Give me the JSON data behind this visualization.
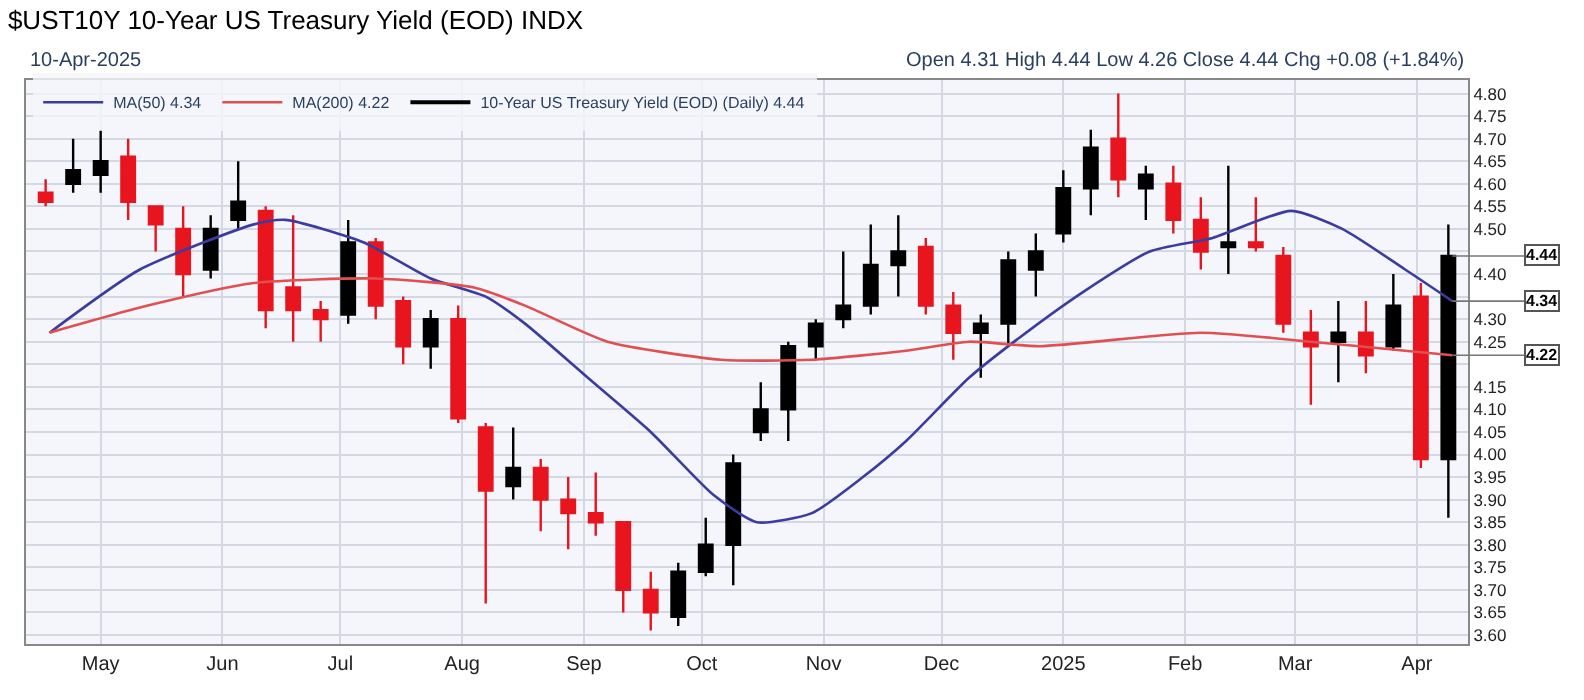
{
  "chart_data": {
    "type": "candlestick",
    "title": "$UST10Y 10-Year US Treasury Yield (EOD) INDX",
    "annotations": [
      "10-Apr-2025",
      "Open 4.31 High 4.44 Low 4.26 Close 4.44 Chg +0.08 (+1.84%)",
      {
        "text": "4.44",
        "x": "2025-04-10",
        "y": 4.44
      },
      {
        "text": "4.34",
        "x": "2025-04-10",
        "y": 4.34
      },
      {
        "text": "4.22",
        "x": "2025-04-10",
        "y": 4.22
      }
    ],
    "series": [
      {
        "name": "10-Year US Treasury Yield (EOD) (Daily) 4.44",
        "type": "candlestick",
        "x": [
          "2024-04-17",
          "2024-04-24",
          "2024-05-01",
          "2024-05-08",
          "2024-05-15",
          "2024-05-22",
          "2024-05-29",
          "2024-06-05",
          "2024-06-12",
          "2024-06-19",
          "2024-06-26",
          "2024-07-03",
          "2024-07-10",
          "2024-07-17",
          "2024-07-24",
          "2024-07-31",
          "2024-08-07",
          "2024-08-14",
          "2024-08-21",
          "2024-08-28",
          "2024-09-04",
          "2024-09-11",
          "2024-09-18",
          "2024-09-25",
          "2024-10-02",
          "2024-10-09",
          "2024-10-16",
          "2024-10-23",
          "2024-10-30",
          "2024-11-06",
          "2024-11-13",
          "2024-11-20",
          "2024-11-27",
          "2024-12-04",
          "2024-12-11",
          "2024-12-18",
          "2024-12-25",
          "2025-01-01",
          "2025-01-08",
          "2025-01-15",
          "2025-01-22",
          "2025-01-29",
          "2025-02-05",
          "2025-02-12",
          "2025-02-19",
          "2025-02-26",
          "2025-03-05",
          "2025-03-12",
          "2025-03-19",
          "2025-03-26",
          "2025-04-02",
          "2025-04-09"
        ],
        "ohlc": [
          [
            4.58,
            4.61,
            4.55,
            4.56
          ],
          [
            4.6,
            4.7,
            4.58,
            4.63
          ],
          [
            4.62,
            4.72,
            4.58,
            4.65
          ],
          [
            4.66,
            4.7,
            4.52,
            4.56
          ],
          [
            4.55,
            4.55,
            4.45,
            4.51
          ],
          [
            4.5,
            4.55,
            4.35,
            4.4
          ],
          [
            4.41,
            4.53,
            4.39,
            4.5
          ],
          [
            4.52,
            4.65,
            4.5,
            4.56
          ],
          [
            4.54,
            4.55,
            4.28,
            4.32
          ],
          [
            4.37,
            4.53,
            4.25,
            4.32
          ],
          [
            4.32,
            4.34,
            4.25,
            4.3
          ],
          [
            4.31,
            4.52,
            4.29,
            4.47
          ],
          [
            4.47,
            4.48,
            4.3,
            4.33
          ],
          [
            4.34,
            4.35,
            4.2,
            4.24
          ],
          [
            4.24,
            4.32,
            4.19,
            4.3
          ],
          [
            4.3,
            4.33,
            4.07,
            4.08
          ],
          [
            4.06,
            4.07,
            3.67,
            3.92
          ],
          [
            3.93,
            4.06,
            3.9,
            3.97
          ],
          [
            3.97,
            3.99,
            3.83,
            3.9
          ],
          [
            3.9,
            3.95,
            3.79,
            3.87
          ],
          [
            3.87,
            3.96,
            3.82,
            3.85
          ],
          [
            3.85,
            3.85,
            3.65,
            3.7
          ],
          [
            3.7,
            3.74,
            3.61,
            3.65
          ],
          [
            3.64,
            3.76,
            3.62,
            3.74
          ],
          [
            3.74,
            3.86,
            3.73,
            3.8
          ],
          [
            3.8,
            4.0,
            3.71,
            3.98
          ],
          [
            4.05,
            4.16,
            4.03,
            4.1
          ],
          [
            4.1,
            4.25,
            4.03,
            4.24
          ],
          [
            4.24,
            4.3,
            4.21,
            4.29
          ],
          [
            4.3,
            4.45,
            4.28,
            4.33
          ],
          [
            4.33,
            4.51,
            4.31,
            4.42
          ],
          [
            4.42,
            4.53,
            4.35,
            4.45
          ],
          [
            4.46,
            4.48,
            4.31,
            4.33
          ],
          [
            4.33,
            4.36,
            4.21,
            4.27
          ],
          [
            4.27,
            4.31,
            4.17,
            4.29
          ],
          [
            4.29,
            4.45,
            4.24,
            4.43
          ],
          [
            4.41,
            4.49,
            4.35,
            4.45
          ],
          [
            4.49,
            4.63,
            4.47,
            4.59
          ],
          [
            4.59,
            4.72,
            4.53,
            4.68
          ],
          [
            4.7,
            4.8,
            4.57,
            4.61
          ],
          [
            4.59,
            4.64,
            4.52,
            4.62
          ],
          [
            4.6,
            4.64,
            4.49,
            4.52
          ],
          [
            4.52,
            4.57,
            4.41,
            4.45
          ],
          [
            4.46,
            4.64,
            4.4,
            4.47
          ],
          [
            4.47,
            4.57,
            4.45,
            4.46
          ],
          [
            4.44,
            4.46,
            4.27,
            4.29
          ],
          [
            4.27,
            4.32,
            4.11,
            4.24
          ],
          [
            4.25,
            4.34,
            4.16,
            4.27
          ],
          [
            4.27,
            4.34,
            4.18,
            4.22
          ],
          [
            4.24,
            4.4,
            4.23,
            4.33
          ],
          [
            4.35,
            4.38,
            3.97,
            3.99
          ],
          [
            3.99,
            4.51,
            3.86,
            4.44
          ]
        ],
        "colors": [
          "#e8141e",
          "#000000",
          "#000000",
          "#e8141e",
          "#e8141e",
          "#e8141e",
          "#000000",
          "#000000",
          "#e8141e",
          "#e8141e",
          "#e8141e",
          "#000000",
          "#e8141e",
          "#e8141e",
          "#000000",
          "#e8141e",
          "#e8141e",
          "#000000",
          "#e8141e",
          "#e8141e",
          "#e8141e",
          "#e8141e",
          "#e8141e",
          "#000000",
          "#000000",
          "#000000",
          "#000000",
          "#000000",
          "#000000",
          "#000000",
          "#000000",
          "#000000",
          "#e8141e",
          "#e8141e",
          "#000000",
          "#000000",
          "#000000",
          "#000000",
          "#000000",
          "#e8141e",
          "#000000",
          "#e8141e",
          "#e8141e",
          "#000000",
          "#e8141e",
          "#e8141e",
          "#e8141e",
          "#000000",
          "#e8141e",
          "#000000",
          "#e8141e",
          "#000000"
        ]
      },
      {
        "name": "MA(50) 4.34",
        "type": "line",
        "color": "#3c3ca0",
        "x": [
          "2024-04-18",
          "2024-05-11",
          "2024-06-09",
          "2024-06-17",
          "2024-07-07",
          "2024-07-24",
          "2024-08-07",
          "2024-08-17",
          "2024-09-02",
          "2024-09-18",
          "2024-10-04",
          "2024-10-15",
          "2024-10-29",
          "2024-11-11",
          "2024-11-22",
          "2024-12-08",
          "2024-12-21",
          "2025-01-06",
          "2025-01-23",
          "2025-02-08",
          "2025-02-28",
          "2025-03-13",
          "2025-03-29",
          "2025-04-10"
        ],
        "values": [
          4.27,
          4.41,
          4.51,
          4.52,
          4.47,
          4.39,
          4.35,
          4.29,
          4.17,
          4.05,
          3.91,
          3.85,
          3.87,
          3.95,
          4.03,
          4.17,
          4.26,
          4.36,
          4.45,
          4.48,
          4.54,
          4.5,
          4.41,
          4.34
        ]
      },
      {
        "name": "MA(200) 4.22",
        "type": "line",
        "color": "#e05050",
        "x": [
          "2024-04-18",
          "2024-05-13",
          "2024-06-09",
          "2024-07-10",
          "2024-08-04",
          "2024-08-17",
          "2024-09-07",
          "2024-10-06",
          "2024-10-29",
          "2024-11-22",
          "2024-12-08",
          "2024-12-26",
          "2025-02-05",
          "2025-03-05",
          "2025-03-29",
          "2025-04-10"
        ],
        "values": [
          4.27,
          4.33,
          4.38,
          4.39,
          4.37,
          4.33,
          4.25,
          4.21,
          4.21,
          4.23,
          4.25,
          4.24,
          4.27,
          4.25,
          4.23,
          4.22
        ]
      }
    ],
    "xlim": [
      "2024-04-12",
      "2025-04-14"
    ],
    "xticks": [
      {
        "value": "2024-05-01",
        "label": "May"
      },
      {
        "value": "2024-06-01",
        "label": "Jun"
      },
      {
        "value": "2024-07-01",
        "label": "Jul"
      },
      {
        "value": "2024-08-01",
        "label": "Aug"
      },
      {
        "value": "2024-09-01",
        "label": "Sep"
      },
      {
        "value": "2024-10-01",
        "label": "Oct"
      },
      {
        "value": "2024-11-01",
        "label": "Nov"
      },
      {
        "value": "2024-12-01",
        "label": "Dec"
      },
      {
        "value": "2025-01-01",
        "label": "2025"
      },
      {
        "value": "2025-02-01",
        "label": "Feb"
      },
      {
        "value": "2025-03-01",
        "label": "Mar"
      },
      {
        "value": "2025-04-01",
        "label": "Apr"
      }
    ],
    "ylim": [
      3.58,
      4.83
    ],
    "yticks": [
      {
        "value": 3.6,
        "label": "3.60"
      },
      {
        "value": 3.65,
        "label": "3.65"
      },
      {
        "value": 3.7,
        "label": "3.70"
      },
      {
        "value": 3.75,
        "label": "3.75"
      },
      {
        "value": 3.8,
        "label": "3.80"
      },
      {
        "value": 3.85,
        "label": "3.85"
      },
      {
        "value": 3.9,
        "label": "3.90"
      },
      {
        "value": 3.95,
        "label": "3.95"
      },
      {
        "value": 4.0,
        "label": "4.00"
      },
      {
        "value": 4.05,
        "label": "4.05"
      },
      {
        "value": 4.1,
        "label": "4.10"
      },
      {
        "value": 4.15,
        "label": "4.15"
      },
      {
        "value": 4.2,
        "label": null
      },
      {
        "value": 4.25,
        "label": "4.25"
      },
      {
        "value": 4.3,
        "label": "4.30"
      },
      {
        "value": 4.35,
        "label": null
      },
      {
        "value": 4.4,
        "label": "4.40"
      },
      {
        "value": 4.45,
        "label": null
      },
      {
        "value": 4.5,
        "label": "4.50"
      },
      {
        "value": 4.55,
        "label": "4.55"
      },
      {
        "value": 4.6,
        "label": "4.60"
      },
      {
        "value": 4.65,
        "label": "4.65"
      },
      {
        "value": 4.7,
        "label": "4.70"
      },
      {
        "value": 4.75,
        "label": "4.75"
      },
      {
        "value": 4.8,
        "label": "4.80"
      }
    ],
    "grid": true,
    "legend": "top left"
  }
}
